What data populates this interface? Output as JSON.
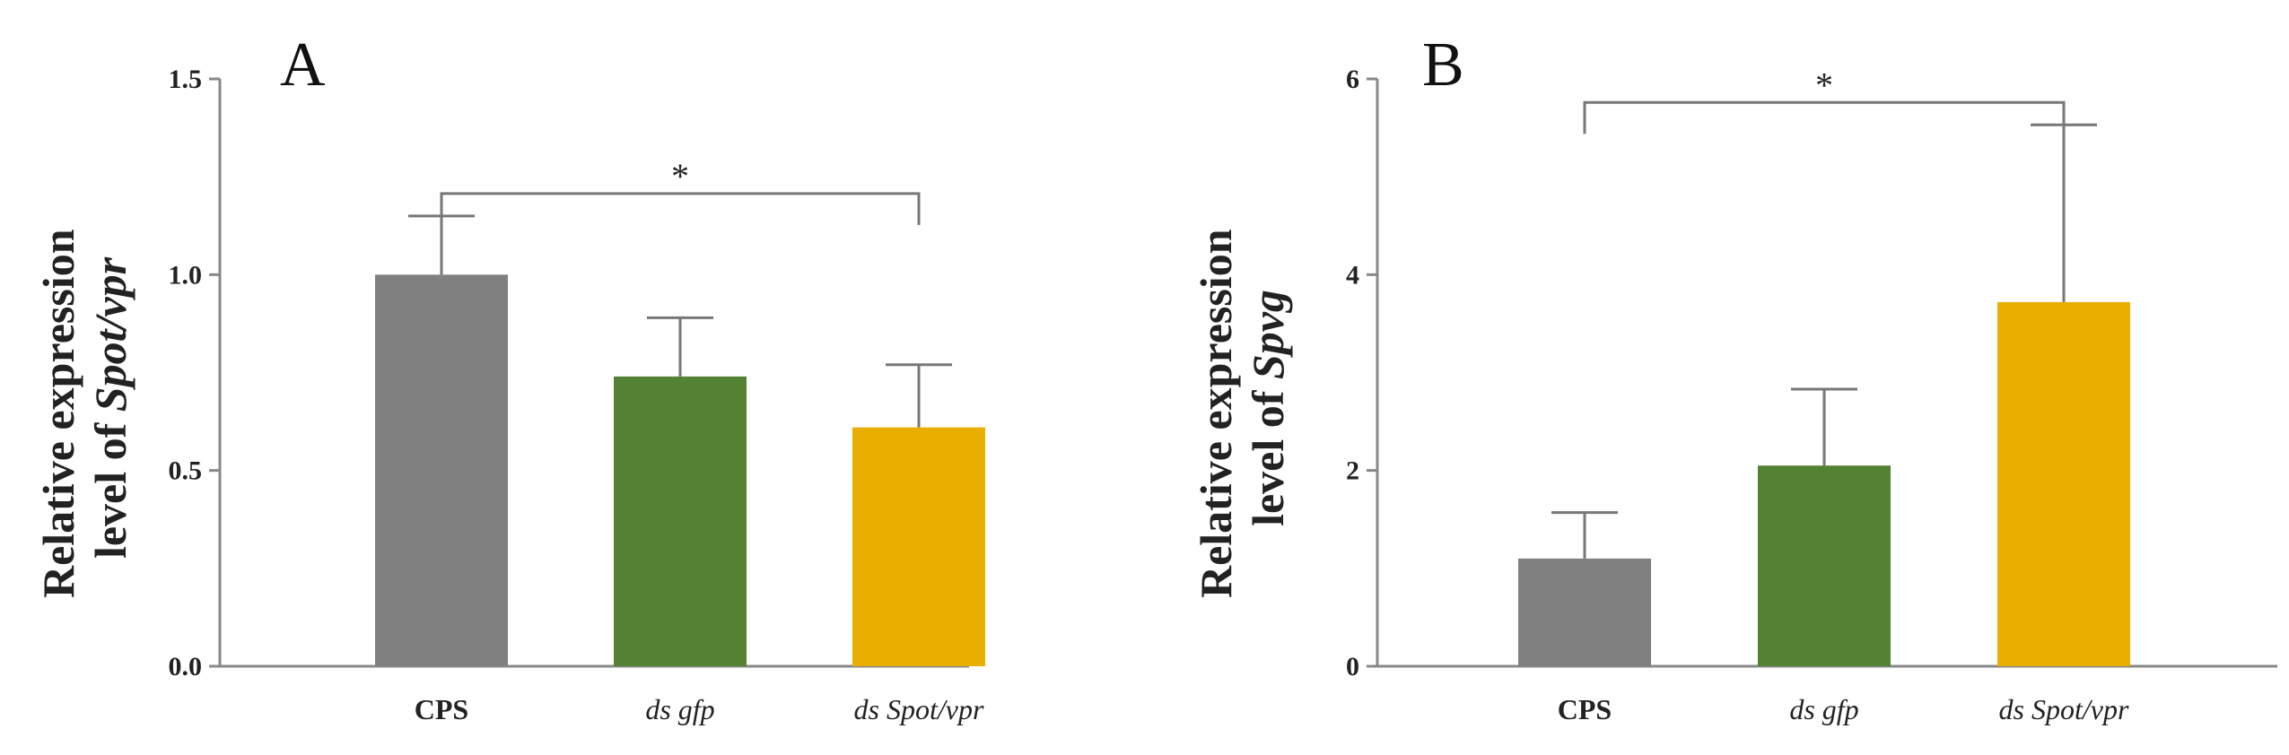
{
  "chart_data": [
    {
      "type": "bar",
      "panel_label": "A",
      "categories": [
        "CPS",
        "ds gfp",
        "ds Spot/vpr"
      ],
      "category_styles": [
        "bold",
        "italic",
        "italic"
      ],
      "values": [
        1.0,
        0.74,
        0.61
      ],
      "errors": [
        0.15,
        0.15,
        0.16
      ],
      "colors": [
        "#808080",
        "#548235",
        "#E8AF00"
      ],
      "ylabel_line1": "Relative expression",
      "ylabel_line2_prefix": "level of ",
      "ylabel_line2_italic": "Spot/vpr",
      "ylim": [
        0,
        1.5
      ],
      "yticks": [
        "0.0",
        "0.5",
        "1.0",
        "1.5"
      ],
      "ytick_values": [
        0,
        0.5,
        1.0,
        1.5
      ],
      "significance": {
        "from": 0,
        "to": 2,
        "label": "*"
      },
      "grid": false
    },
    {
      "type": "bar",
      "panel_label": "B",
      "categories": [
        "CPS",
        "ds gfp",
        "ds Spot/vpr"
      ],
      "category_styles": [
        "bold",
        "italic",
        "italic"
      ],
      "values": [
        1.1,
        2.05,
        3.72
      ],
      "errors": [
        0.47,
        0.78,
        1.81
      ],
      "colors": [
        "#808080",
        "#548235",
        "#E8AF00"
      ],
      "ylabel_line1": "Relative expression",
      "ylabel_line2_prefix": "level of ",
      "ylabel_line2_italic": "Spvg",
      "ylim": [
        0,
        6
      ],
      "yticks": [
        "0",
        "2",
        "4",
        "6"
      ],
      "ytick_values": [
        0,
        2,
        4,
        6
      ],
      "significance": {
        "from": 0,
        "to": 2,
        "label": "*"
      },
      "grid": false
    }
  ]
}
